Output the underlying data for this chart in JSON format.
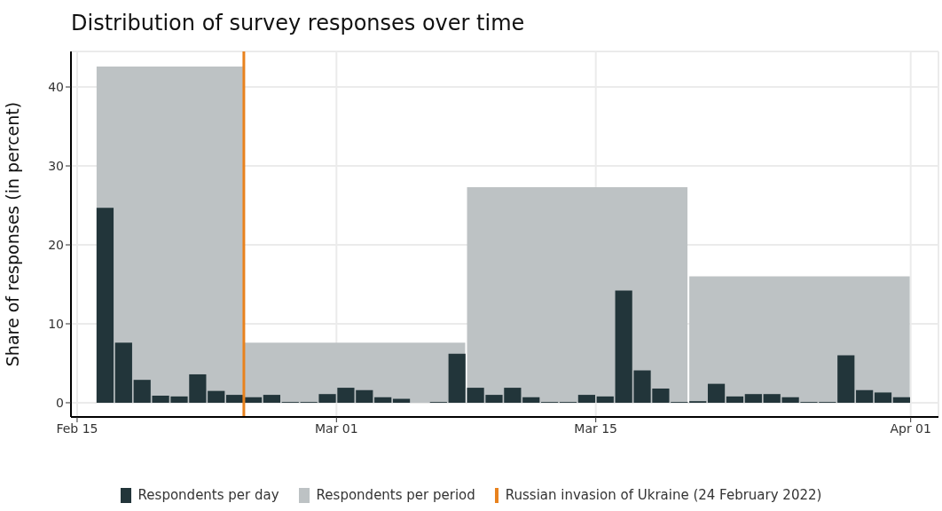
{
  "chart_data": {
    "type": "bar",
    "title": "Distribution of survey responses over time",
    "ylabel": "Share of responses (in percent)",
    "xlim": [
      "2022-02-14T16:00",
      "2022-04-02T12:00"
    ],
    "xticks": [
      {
        "value": "2022-02-15",
        "label": "Feb 15"
      },
      {
        "value": "2022-03-01",
        "label": "Mar 01"
      },
      {
        "value": "2022-03-15",
        "label": "Mar 15"
      },
      {
        "value": "2022-04-01",
        "label": "Apr 01"
      }
    ],
    "ylim": [
      -1.8,
      44.5
    ],
    "yticks": [
      0,
      10,
      20,
      30,
      40
    ],
    "grid": true,
    "legend": "bottom",
    "series": [
      {
        "name": "Respondents per day",
        "type": "bar",
        "color": "#22353a",
        "x": [
          "2022-02-16T12:00",
          "2022-02-17T12:00",
          "2022-02-18T12:00",
          "2022-02-19T12:00",
          "2022-02-20T12:00",
          "2022-02-21T12:00",
          "2022-02-22T12:00",
          "2022-02-23T12:00",
          "2022-02-24T12:00",
          "2022-02-25T12:00",
          "2022-02-26T12:00",
          "2022-02-27T12:00",
          "2022-02-28T12:00",
          "2022-03-01T12:00",
          "2022-03-02T12:00",
          "2022-03-03T12:00",
          "2022-03-04T12:00",
          "2022-03-05T12:00",
          "2022-03-06T12:00",
          "2022-03-07T12:00",
          "2022-03-08T12:00",
          "2022-03-09T12:00",
          "2022-03-10T12:00",
          "2022-03-11T12:00",
          "2022-03-12T12:00",
          "2022-03-13T12:00",
          "2022-03-14T12:00",
          "2022-03-15T12:00",
          "2022-03-16T12:00",
          "2022-03-17T12:00",
          "2022-03-18T12:00",
          "2022-03-19T12:00",
          "2022-03-20T12:00",
          "2022-03-21T12:00",
          "2022-03-22T12:00",
          "2022-03-23T12:00",
          "2022-03-24T12:00",
          "2022-03-25T12:00",
          "2022-03-26T12:00",
          "2022-03-27T12:00",
          "2022-03-28T12:00",
          "2022-03-29T12:00",
          "2022-03-30T12:00",
          "2022-03-31T12:00"
        ],
        "values": [
          24.7,
          7.6,
          2.9,
          0.9,
          0.8,
          3.6,
          1.5,
          1.0,
          0.7,
          1.0,
          0.1,
          0.1,
          1.1,
          1.9,
          1.6,
          0.7,
          0.5,
          null,
          0.1,
          6.2,
          1.9,
          1.0,
          1.9,
          0.7,
          0.1,
          0.1,
          1.0,
          0.8,
          14.2,
          4.1,
          1.8,
          0.1,
          0.2,
          2.4,
          0.8,
          1.1,
          1.1,
          0.7,
          0.1,
          0.1,
          6.0,
          1.6,
          1.3,
          0.7
        ]
      },
      {
        "name": "Respondents per period",
        "type": "histogram",
        "color": "#bdc2c4",
        "bins": [
          "2022-02-16",
          "2022-02-24",
          "2022-03-08",
          "2022-03-20",
          "2022-04-01"
        ],
        "values": [
          42.6,
          7.6,
          27.3,
          16.0
        ]
      }
    ],
    "ref_lines": [
      {
        "axis": "x",
        "value": "2022-02-24",
        "label": "Russian invasion of Ukraine (24 February 2022)",
        "color": "#e8821e",
        "line_style": "solid"
      }
    ]
  }
}
